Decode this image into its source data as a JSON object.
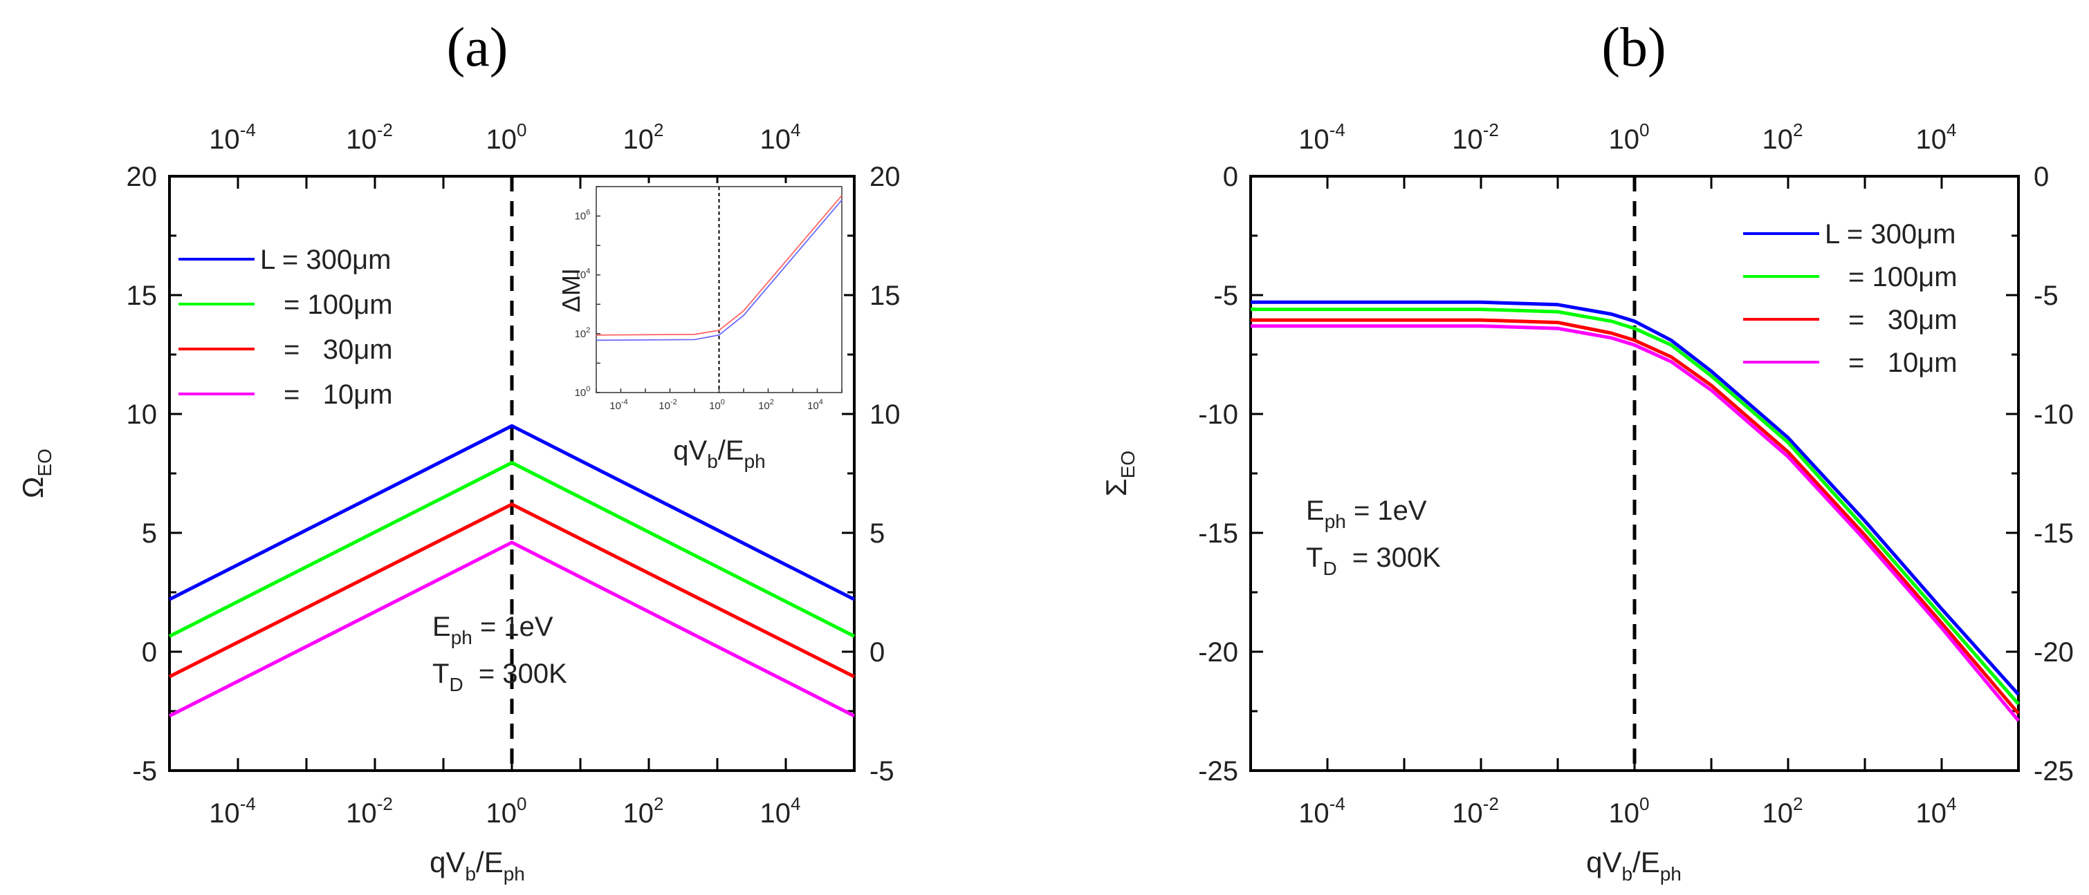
{
  "chart_data": [
    {
      "id": "a",
      "panel_label": "(a)",
      "type": "line",
      "x_scale": "log",
      "xlim": [
        1e-05,
        100000
      ],
      "ylim": [
        -5,
        20
      ],
      "y_ticks": [
        "-5",
        "0",
        "5",
        "10",
        "15",
        "20"
      ],
      "x_tick_exponents": [
        "-4",
        "-2",
        "0",
        "2",
        "4"
      ],
      "xlabel": {
        "a": "qV",
        "b": "b",
        "c": "/E",
        "d": "ph"
      },
      "ylabel": {
        "a": "Ω",
        "b": "EO"
      },
      "vline_x": 1,
      "annotation": {
        "e1": "E",
        "e2": "ph",
        "e3": " = 1eV",
        "t1": "T",
        "t2": "D",
        "t3": "  = 300K"
      },
      "legend": {
        "first_label": "L = 300μm",
        "labels": [
          "= 100μm",
          "=   30μm",
          "=   10μm"
        ]
      },
      "series": [
        {
          "name": "L = 300μm",
          "color": "#0000ff",
          "x": [
            1e-05,
            1,
            100000
          ],
          "y": [
            2.2,
            9.5,
            2.2
          ]
        },
        {
          "name": "= 100μm",
          "color": "#00ff00",
          "x": [
            1e-05,
            1,
            100000
          ],
          "y": [
            0.65,
            7.95,
            0.65
          ]
        },
        {
          "name": "= 30μm",
          "color": "#ff0000",
          "x": [
            1e-05,
            1,
            100000
          ],
          "y": [
            -1.05,
            6.2,
            -1.05
          ]
        },
        {
          "name": "= 10μm",
          "color": "#ff00ff",
          "x": [
            1e-05,
            1,
            100000
          ],
          "y": [
            -2.7,
            4.6,
            -2.7
          ]
        }
      ],
      "inset": {
        "type": "line",
        "x_scale": "log",
        "y_scale": "log",
        "xlim": [
          1e-05,
          100000
        ],
        "ylim": [
          1,
          10000000
        ],
        "ylabel": "ΔMI",
        "xlabel": {
          "a": "qV",
          "b": "b",
          "c": "/E",
          "d": "ph"
        },
        "x_tick_exponents": [
          "-4",
          "-2",
          "0",
          "2",
          "4"
        ],
        "y_tick_exponents": [
          "0",
          "2",
          "4",
          "6"
        ],
        "vline_x": 1,
        "series": [
          {
            "color": "#ff6666",
            "x": [
              1e-05,
              0.1,
              1,
              10,
              100000
            ],
            "y": [
              90,
              95,
              130,
              600,
              5000000
            ]
          },
          {
            "color": "#6a6aff",
            "x": [
              1e-05,
              0.1,
              1,
              10,
              100000
            ],
            "y": [
              60,
              63,
              90,
              420,
              3500000
            ]
          }
        ]
      }
    },
    {
      "id": "b",
      "panel_label": "(b)",
      "type": "line",
      "x_scale": "log",
      "xlim": [
        1e-05,
        100000
      ],
      "ylim": [
        -25,
        0
      ],
      "y_ticks": [
        "-25",
        "-20",
        "-15",
        "-10",
        "-5",
        "0"
      ],
      "x_tick_exponents": [
        "-4",
        "-2",
        "0",
        "2",
        "4"
      ],
      "xlabel": {
        "a": "qV",
        "b": "b",
        "c": "/E",
        "d": "ph"
      },
      "ylabel": {
        "a": "Σ",
        "b": "EO"
      },
      "vline_x": 1,
      "annotation": {
        "e1": "E",
        "e2": "ph",
        "e3": " = 1eV",
        "t1": "T",
        "t2": "D",
        "t3": "  = 300K"
      },
      "legend": {
        "first_label": "L = 300μm",
        "labels": [
          "= 100μm",
          "=   30μm",
          "=   10μm"
        ]
      },
      "series": [
        {
          "name": "L = 300μm",
          "color": "#0000ff",
          "x": [
            1e-05,
            0.01,
            0.1,
            0.5,
            1,
            3,
            10,
            100,
            1000,
            10000,
            100000
          ],
          "y": [
            -5.3,
            -5.3,
            -5.4,
            -5.8,
            -6.1,
            -6.9,
            -8.2,
            -11.0,
            -14.5,
            -18.2,
            -21.8
          ]
        },
        {
          "name": "= 100μm",
          "color": "#00ff00",
          "x": [
            1e-05,
            0.01,
            0.1,
            0.5,
            1,
            3,
            10,
            100,
            1000,
            10000,
            100000
          ],
          "y": [
            -5.6,
            -5.6,
            -5.7,
            -6.1,
            -6.4,
            -7.1,
            -8.4,
            -11.2,
            -14.8,
            -18.5,
            -22.2
          ]
        },
        {
          "name": "= 30μm",
          "color": "#ff0000",
          "x": [
            1e-05,
            0.01,
            0.1,
            0.5,
            1,
            3,
            10,
            100,
            1000,
            10000,
            100000
          ],
          "y": [
            -6.05,
            -6.05,
            -6.15,
            -6.6,
            -6.9,
            -7.6,
            -8.8,
            -11.6,
            -15.1,
            -18.8,
            -22.6
          ]
        },
        {
          "name": "= 10μm",
          "color": "#ff00ff",
          "x": [
            1e-05,
            0.01,
            0.1,
            0.5,
            1,
            3,
            10,
            100,
            1000,
            10000,
            100000
          ],
          "y": [
            -6.3,
            -6.3,
            -6.4,
            -6.8,
            -7.1,
            -7.8,
            -9.0,
            -11.8,
            -15.3,
            -19.0,
            -22.9
          ]
        }
      ]
    }
  ]
}
